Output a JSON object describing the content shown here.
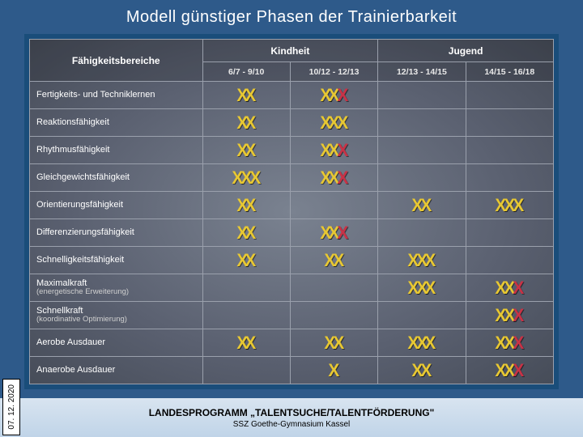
{
  "title": "Modell günstiger Phasen der Trainierbarkeit",
  "table": {
    "corner": "Fähigkeitsbereiche",
    "group_headers": [
      "Kindheit",
      "Jugend"
    ],
    "sub_headers": [
      "6/7 - 9/10",
      "10/12 - 12/13",
      "12/13 - 14/15",
      "14/15 - 16/18"
    ],
    "col_widths": [
      "33%",
      "16.75%",
      "16.75%",
      "16.75%",
      "16.75%"
    ],
    "rows": [
      {
        "label": "Fertigkeits- und Techniklernen",
        "cells": [
          "yy",
          "yyr",
          "",
          ""
        ]
      },
      {
        "label": "Reaktionsfähigkeit",
        "cells": [
          "yy",
          "yyy",
          "",
          ""
        ]
      },
      {
        "label": "Rhythmusfähigkeit",
        "cells": [
          "yy",
          "yyr",
          "",
          ""
        ]
      },
      {
        "label": "Gleichgewichtsfähigkeit",
        "cells": [
          "yyy",
          "yyr",
          "",
          ""
        ]
      },
      {
        "label": "Orientierungsfähigkeit",
        "cells": [
          "yy",
          "",
          "yy",
          "yyy"
        ]
      },
      {
        "label": "Differenzierungsfähigkeit",
        "cells": [
          "yy",
          "yyr",
          "",
          ""
        ]
      },
      {
        "label": "Schnelligkeitsfähigkeit",
        "cells": [
          "yy",
          "yy",
          "yyy",
          ""
        ]
      },
      {
        "label": "Maximalkraft",
        "sub": "(energetische Erweiterung)",
        "cells": [
          "",
          "",
          "yyy",
          "yyr"
        ]
      },
      {
        "label": "Schnellkraft",
        "sub": "(koordinative Optimierung)",
        "cells": [
          "",
          "",
          "",
          "yyr"
        ]
      },
      {
        "label": "Aerobe Ausdauer",
        "cells": [
          "yy",
          "yy",
          "yyy",
          "yyr"
        ]
      },
      {
        "label": "Anaerobe Ausdauer",
        "cells": [
          "",
          "y",
          "yy",
          "yyr"
        ]
      }
    ]
  },
  "colors": {
    "y": "#e8c832",
    "r": "#c83246",
    "header_bg": "#2e5a8a",
    "border": "#1a4d7a"
  },
  "footer": {
    "line1": "LANDESPROGRAMM „TALENTSUCHE/TALENTFÖRDERUNG\"",
    "line2": "SSZ Goethe-Gymnasium Kassel"
  },
  "date": "07. 12. 2020"
}
